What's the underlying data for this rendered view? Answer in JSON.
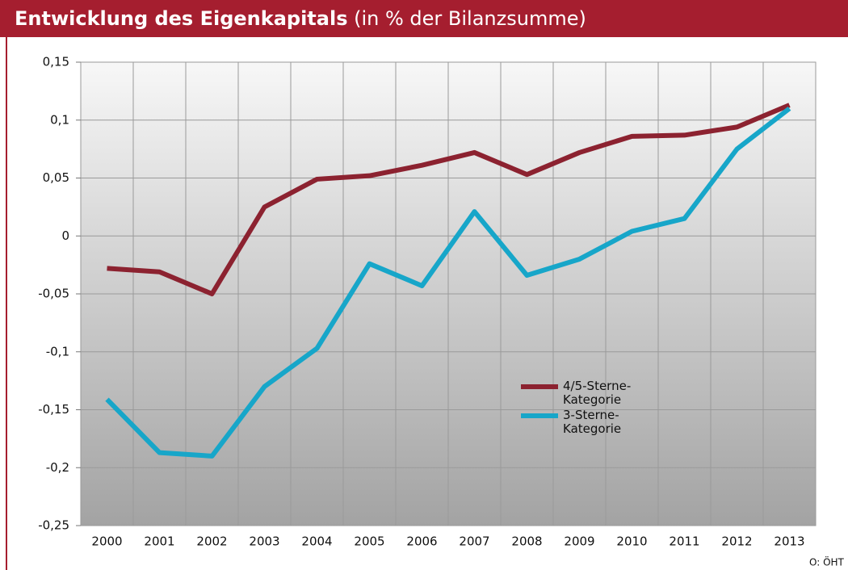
{
  "chart_data": {
    "type": "line",
    "title": "Entwicklung des Eigenkapitals",
    "subtitle": "(in % der Bilanzsumme)",
    "source": "O: ÖHT",
    "categories": [
      "2000",
      "2001",
      "2002",
      "2003",
      "2004",
      "2005",
      "2006",
      "2007",
      "2008",
      "2009",
      "2010",
      "2011",
      "2012",
      "2013"
    ],
    "series": [
      {
        "name": "4/5-Sterne-Kategorie",
        "color": "#8c2230",
        "values": [
          -0.028,
          -0.031,
          -0.05,
          0.025,
          0.049,
          0.052,
          0.061,
          0.072,
          0.053,
          0.072,
          0.086,
          0.087,
          0.094,
          0.113
        ]
      },
      {
        "name": "3-Sterne-Kategorie",
        "color": "#17a6c9",
        "values": [
          -0.141,
          -0.187,
          -0.19,
          -0.13,
          -0.097,
          -0.024,
          -0.043,
          0.021,
          -0.034,
          -0.02,
          0.004,
          0.015,
          0.075,
          0.11
        ]
      }
    ],
    "ylim": [
      -0.25,
      0.15
    ],
    "yticks": [
      {
        "value": -0.25,
        "label": "-0,25"
      },
      {
        "value": -0.2,
        "label": "-0,2"
      },
      {
        "value": -0.15,
        "label": "-0,15"
      },
      {
        "value": -0.1,
        "label": "-0,1"
      },
      {
        "value": -0.05,
        "label": "-0,05"
      },
      0,
      {
        "value": 0.05,
        "label": "0,05"
      },
      {
        "value": 0.1,
        "label": "0,1"
      },
      {
        "value": 0.15,
        "label": "0,15"
      }
    ],
    "grid": true
  }
}
